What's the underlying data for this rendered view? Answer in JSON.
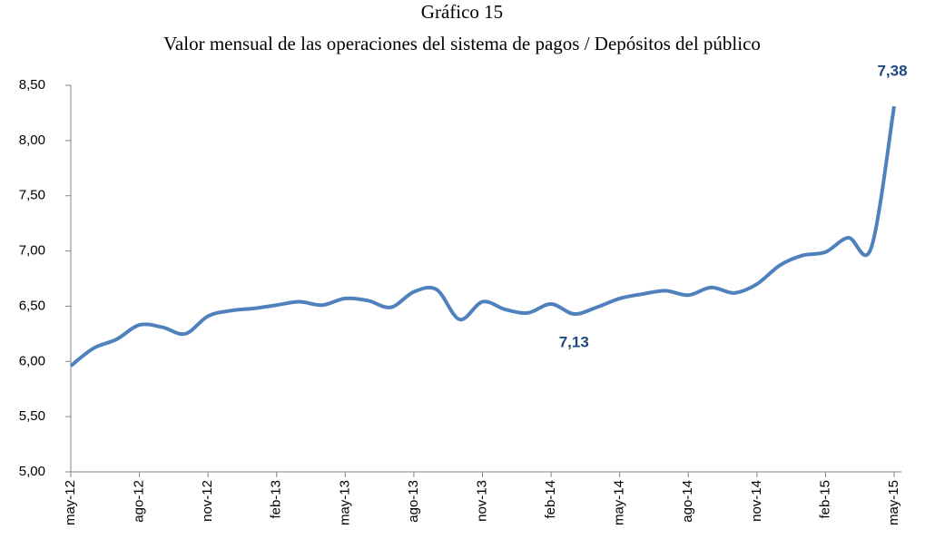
{
  "chart_data": {
    "type": "line",
    "title": "Gráfico 15",
    "subtitle": "Valor mensual de las operaciones del sistema de pagos / Depósitos del público",
    "categories": [
      "may-12",
      null,
      null,
      "ago-12",
      null,
      null,
      "nov-12",
      null,
      null,
      "feb-13",
      null,
      null,
      "may-13",
      null,
      null,
      "ago-13",
      null,
      null,
      "nov-13",
      null,
      null,
      "feb-14",
      null,
      null,
      "may-14",
      null,
      null,
      "ago-14",
      null,
      null,
      "nov-14",
      null,
      null,
      "feb-15",
      null,
      null,
      "may-15"
    ],
    "values": [
      5.96,
      6.12,
      6.2,
      6.33,
      6.31,
      6.25,
      6.41,
      6.46,
      6.48,
      6.51,
      6.54,
      6.51,
      6.57,
      6.55,
      6.49,
      6.63,
      6.65,
      6.38,
      6.54,
      6.47,
      6.44,
      6.52,
      6.43,
      6.49,
      6.57,
      6.61,
      6.64,
      6.6,
      6.67,
      6.62,
      6.7,
      6.87,
      6.96,
      6.99,
      7.12,
      7.03,
      8.31
    ],
    "color": "#4f81bd",
    "ylim": [
      5,
      8.5
    ],
    "yticks": [
      {
        "value": 5,
        "label": "5,00"
      },
      {
        "value": 5.5,
        "label": "5,50"
      },
      {
        "value": 6,
        "label": "6,00"
      },
      {
        "value": 6.5,
        "label": "6,50"
      },
      {
        "value": 7,
        "label": "7,00"
      },
      {
        "value": 7.5,
        "label": "7,50"
      },
      {
        "value": 8,
        "label": "8,00"
      },
      {
        "value": 8.5,
        "label": "8,50"
      }
    ],
    "annotations": [
      {
        "text": "7,38"
      },
      {
        "text": "7,13"
      }
    ]
  }
}
